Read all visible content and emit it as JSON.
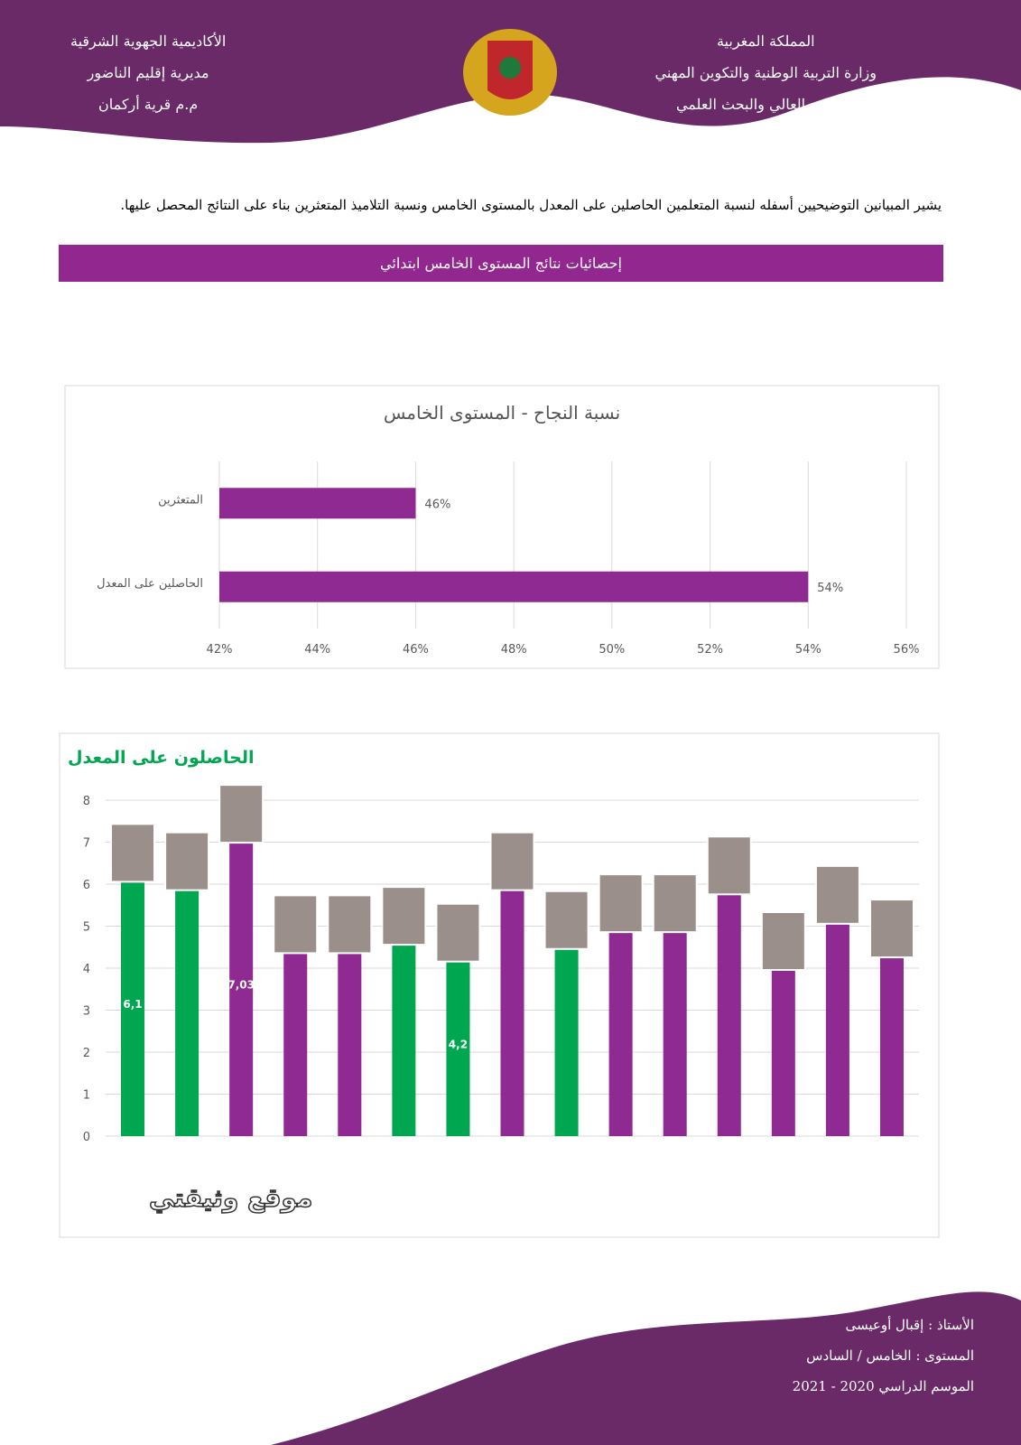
{
  "header": {
    "right": [
      "المملكة المغربية",
      "وزارة التربية الوطنية والتكوين المهني",
      "والتعليم العالي والبحث العلمي"
    ],
    "left": [
      "الأكاديمية الجهوية الشرقية",
      "مديرية إقليم الناضور",
      "م.م قرية أركمان"
    ]
  },
  "intro": "يشير المبيانين التوضيحيين أسفله لنسبة المتعلمين الحاصلين على المعدل بالمستوى الخامس ونسبة التلاميذ المتعثرين بناء على النتائج المحصل عليها.",
  "banner": "إحصائيات نتائج المستوى الخامس ابتدائي",
  "chart_data": [
    {
      "type": "hbar",
      "title": "نسبة النجاح - المستوى الخامس",
      "categories": [
        "المتعثرين",
        "الحاصلين على المعدل"
      ],
      "values": [
        46,
        54
      ],
      "value_labels": [
        "46%",
        "54%"
      ],
      "color": "#8e2a92",
      "xlim": [
        42,
        56
      ],
      "xticks": [
        {
          "value": 42,
          "label": "42%"
        },
        {
          "value": 44,
          "label": "44%"
        },
        {
          "value": 46,
          "label": "46%"
        },
        {
          "value": 48,
          "label": "48%"
        },
        {
          "value": 50,
          "label": "50%"
        },
        {
          "value": 52,
          "label": "52%"
        },
        {
          "value": 54,
          "label": "54%"
        },
        {
          "value": 56,
          "label": "56%"
        }
      ],
      "grid": true
    },
    {
      "type": "bar",
      "title": "الحاصلون على المعدل",
      "categories": [
        null,
        null,
        null,
        null,
        null,
        null,
        null,
        null,
        null,
        null,
        null,
        null,
        null,
        null,
        null
      ],
      "values": [
        6.1,
        5.9,
        7.03,
        4.4,
        4.4,
        4.6,
        4.2,
        5.9,
        4.5,
        4.9,
        4.9,
        5.8,
        4,
        5.1,
        4.3
      ],
      "value_labels": [
        "6,1",
        null,
        "7,03",
        null,
        null,
        null,
        "4,2",
        null,
        null,
        null,
        null,
        null,
        null,
        null,
        null
      ],
      "colors": [
        "#00a650",
        "#00a650",
        "#8e2a92",
        "#8e2a92",
        "#8e2a92",
        "#00a650",
        "#00a650",
        "#8e2a92",
        "#00a650",
        "#8e2a92",
        "#8e2a92",
        "#8e2a92",
        "#8e2a92",
        "#8e2a92",
        "#8e2a92"
      ],
      "ylim": [
        0,
        8
      ],
      "yticks": [
        0,
        1,
        2,
        3,
        4,
        5,
        6,
        7,
        8
      ],
      "grid": true
    }
  ],
  "watermark": "موقع وثيقتي",
  "footer": [
    "الأستاذ : إقبال أوعيسى",
    "المستوى : الخامس / السادس",
    "الموسم الدراسي 2020 - 2021"
  ]
}
